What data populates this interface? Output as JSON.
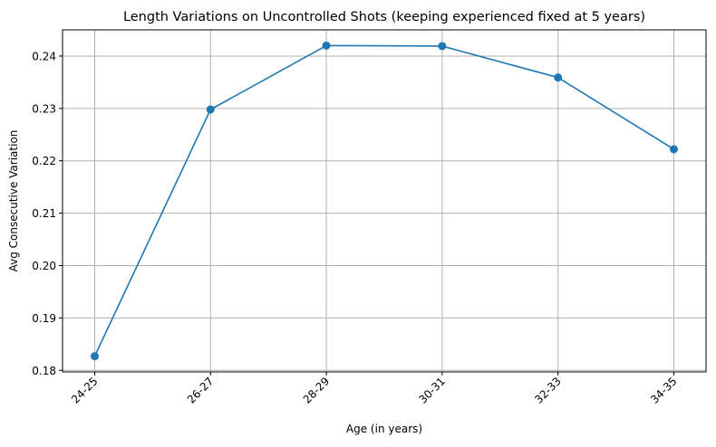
{
  "chart_data": {
    "type": "line",
    "title": "Length Variations on Uncontrolled Shots (keeping experienced fixed at 5 years)",
    "xlabel": "Age (in years)",
    "ylabel": "Avg Consecutive Variation",
    "categories": [
      "24-25",
      "26-27",
      "28-29",
      "30-31",
      "32-33",
      "34-35"
    ],
    "series": [
      {
        "values": [
          0.1827,
          0.2298,
          0.242,
          0.2419,
          0.2359,
          0.2222
        ],
        "color": "#1f77b4",
        "marker": "circle"
      }
    ],
    "ylim": [
      0.1797,
      0.245
    ],
    "yticks": [
      0.18,
      0.19,
      0.2,
      0.21,
      0.22,
      0.23,
      0.24
    ],
    "ytick_labels": [
      "0.18",
      "0.19",
      "0.20",
      "0.21",
      "0.22",
      "0.23",
      "0.24"
    ],
    "grid": true,
    "xtick_rotation": 45
  }
}
